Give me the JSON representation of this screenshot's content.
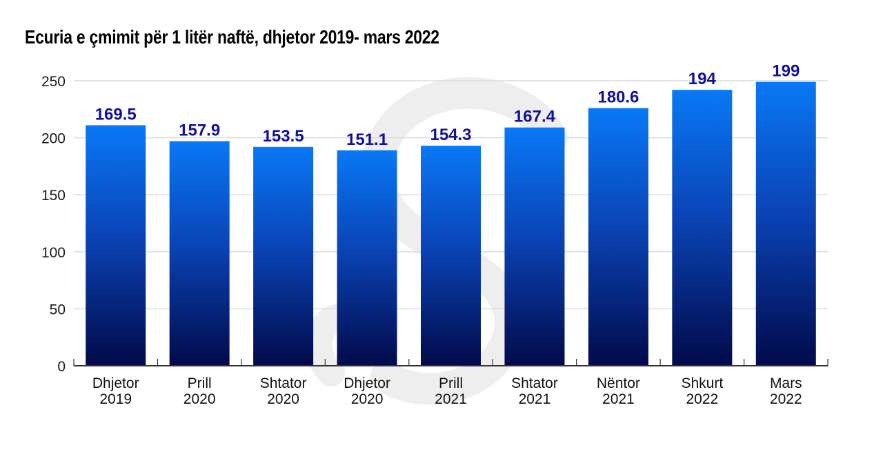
{
  "chart_data": {
    "type": "bar",
    "title": "Ecuria e çmimit për 1 litër naftë, dhjetor 2019- mars 2022",
    "xlabel": "",
    "ylabel": "",
    "categories": [
      [
        "Dhjetor",
        "2019"
      ],
      [
        "Prill",
        "2020"
      ],
      [
        "Shtator",
        "2020"
      ],
      [
        "Dhjetor",
        "2020"
      ],
      [
        "Prill",
        "2021"
      ],
      [
        "Shtator",
        "2021"
      ],
      [
        "Nëntor",
        "2021"
      ],
      [
        "Shkurt",
        "2022"
      ],
      [
        "Mars",
        "2022"
      ]
    ],
    "values": [
      169.5,
      157.9,
      153.5,
      151.1,
      154.3,
      167.4,
      180.6,
      194,
      199
    ],
    "data_labels": [
      "169.5",
      "157.9",
      "153.5",
      "151.1",
      "154.3",
      "167.4",
      "180.6",
      "194",
      "199"
    ],
    "plotted_values_on_axis": [
      211,
      197,
      192,
      189,
      193,
      209,
      226,
      242,
      249
    ],
    "ylim": [
      0,
      250
    ],
    "yticks": [
      0,
      50,
      100,
      150,
      200,
      250
    ],
    "grid": true,
    "legend": "none",
    "colors": {
      "bar_top": "#0a78f5",
      "bar_bottom": "#020a4a",
      "data_label": "#10109a",
      "grid": "#dcdcdc",
      "axis": "#333333",
      "watermark": "#eeeeee"
    }
  }
}
